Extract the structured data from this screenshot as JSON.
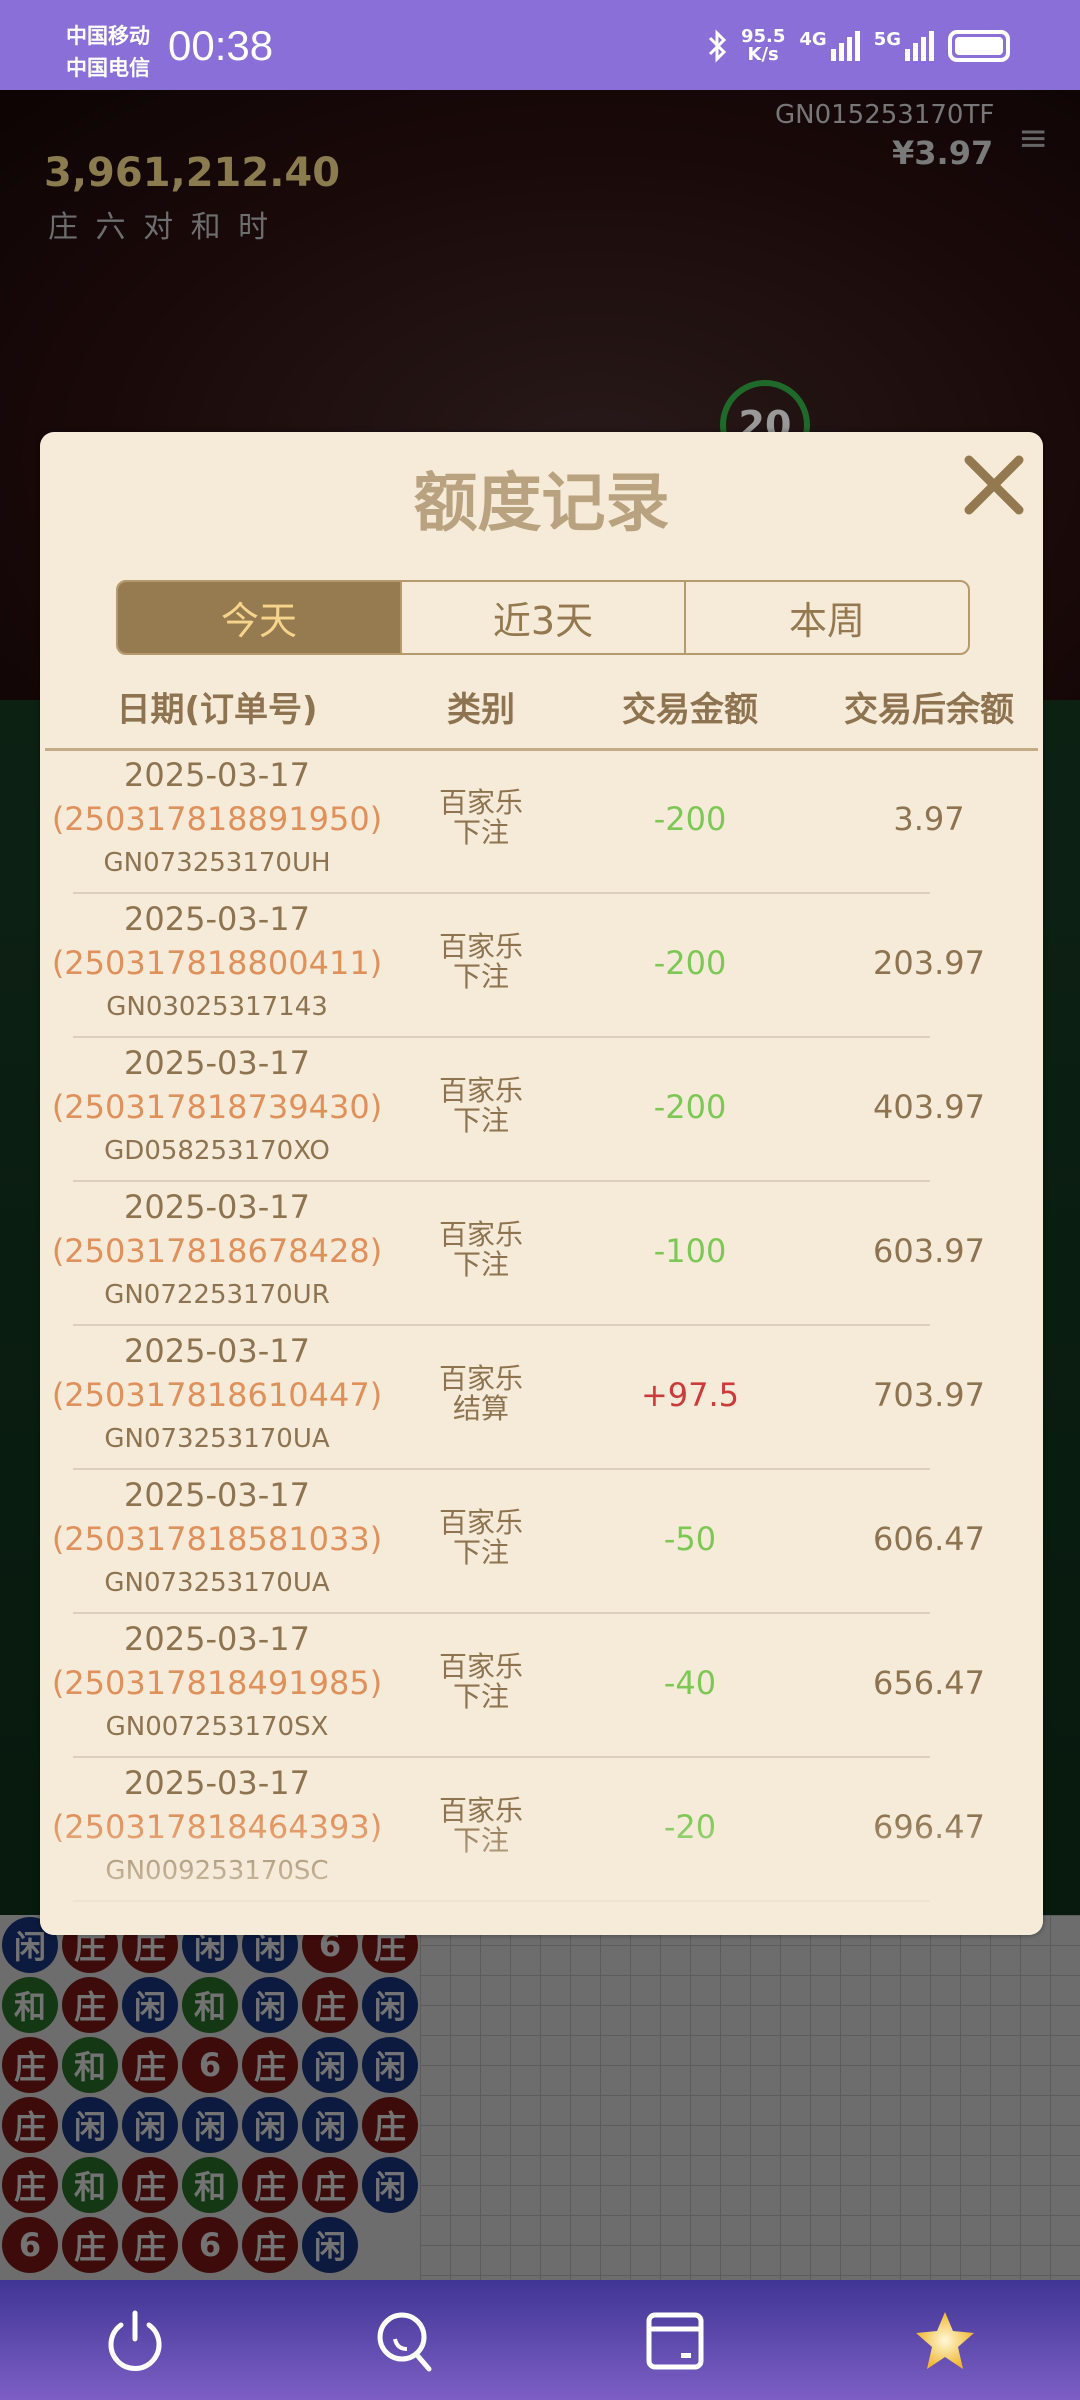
{
  "status_bar": {
    "carrier1": "中国移动",
    "carrier2": "中国电信",
    "time": "00:38",
    "net_speed": "95.5",
    "net_unit": "K/s",
    "net1": "4G",
    "net2": "5G"
  },
  "video": {
    "table_id": "GN015253170TF",
    "balance": "¥3.97",
    "pool": "3,961,212.40",
    "bet_tags": "庄 六 对 和 时",
    "countdown": "20"
  },
  "bead_road": [
    [
      "闲",
      "庄",
      "庄",
      "闲",
      "闲",
      "6",
      "庄"
    ],
    [
      "和",
      "庄",
      "闲",
      "和",
      "闲",
      "庄",
      "闲"
    ],
    [
      "庄",
      "和",
      "庄",
      "6",
      "庄",
      "闲",
      "闲"
    ],
    [
      "庄",
      "闲",
      "闲",
      "闲",
      "闲",
      "闲",
      "庄"
    ],
    [
      "庄",
      "和",
      "庄",
      "和",
      "庄",
      "庄",
      "闲"
    ],
    [
      "6",
      "庄",
      "庄",
      "6",
      "庄",
      "闲",
      ""
    ]
  ],
  "bead_colors": {
    "庄": "#8b1a1a",
    "闲": "#1a3a8b",
    "和": "#2d7a2d",
    "6": "#8b1a1a"
  },
  "modal": {
    "title": "额度记录",
    "tabs": [
      {
        "label": "今天",
        "active": true
      },
      {
        "label": "近3天",
        "active": false
      },
      {
        "label": "本周",
        "active": false
      }
    ],
    "headers": [
      "日期(订单号)",
      "类别",
      "交易金额",
      "交易后余额"
    ],
    "rows": [
      {
        "date": "2025-03-17",
        "order": "(250317818891950)",
        "game_id": "GN073253170UH",
        "cat1": "百家乐",
        "cat2": "下注",
        "amount": "-200",
        "balance": "3.97"
      },
      {
        "date": "2025-03-17",
        "order": "(250317818800411)",
        "game_id": "GN03025317143",
        "cat1": "百家乐",
        "cat2": "下注",
        "amount": "-200",
        "balance": "203.97"
      },
      {
        "date": "2025-03-17",
        "order": "(250317818739430)",
        "game_id": "GD058253170XO",
        "cat1": "百家乐",
        "cat2": "下注",
        "amount": "-200",
        "balance": "403.97"
      },
      {
        "date": "2025-03-17",
        "order": "(250317818678428)",
        "game_id": "GN072253170UR",
        "cat1": "百家乐",
        "cat2": "下注",
        "amount": "-100",
        "balance": "603.97"
      },
      {
        "date": "2025-03-17",
        "order": "(250317818610447)",
        "game_id": "GN073253170UA",
        "cat1": "百家乐",
        "cat2": "结算",
        "amount": "+97.5",
        "balance": "703.97"
      },
      {
        "date": "2025-03-17",
        "order": "(250317818581033)",
        "game_id": "GN073253170UA",
        "cat1": "百家乐",
        "cat2": "下注",
        "amount": "-50",
        "balance": "606.47"
      },
      {
        "date": "2025-03-17",
        "order": "(250317818491985)",
        "game_id": "GN007253170SX",
        "cat1": "百家乐",
        "cat2": "下注",
        "amount": "-40",
        "balance": "656.47"
      },
      {
        "date": "2025-03-17",
        "order": "(250317818464393)",
        "game_id": "GN009253170SC",
        "cat1": "百家乐",
        "cat2": "下注",
        "amount": "-20",
        "balance": "696.47"
      }
    ],
    "colors": {
      "negative": "#7dc855",
      "positive": "#cc3a3a"
    }
  },
  "nav": {
    "icons": [
      "power-icon",
      "search-icon",
      "wallet-icon",
      "star-icon"
    ]
  }
}
